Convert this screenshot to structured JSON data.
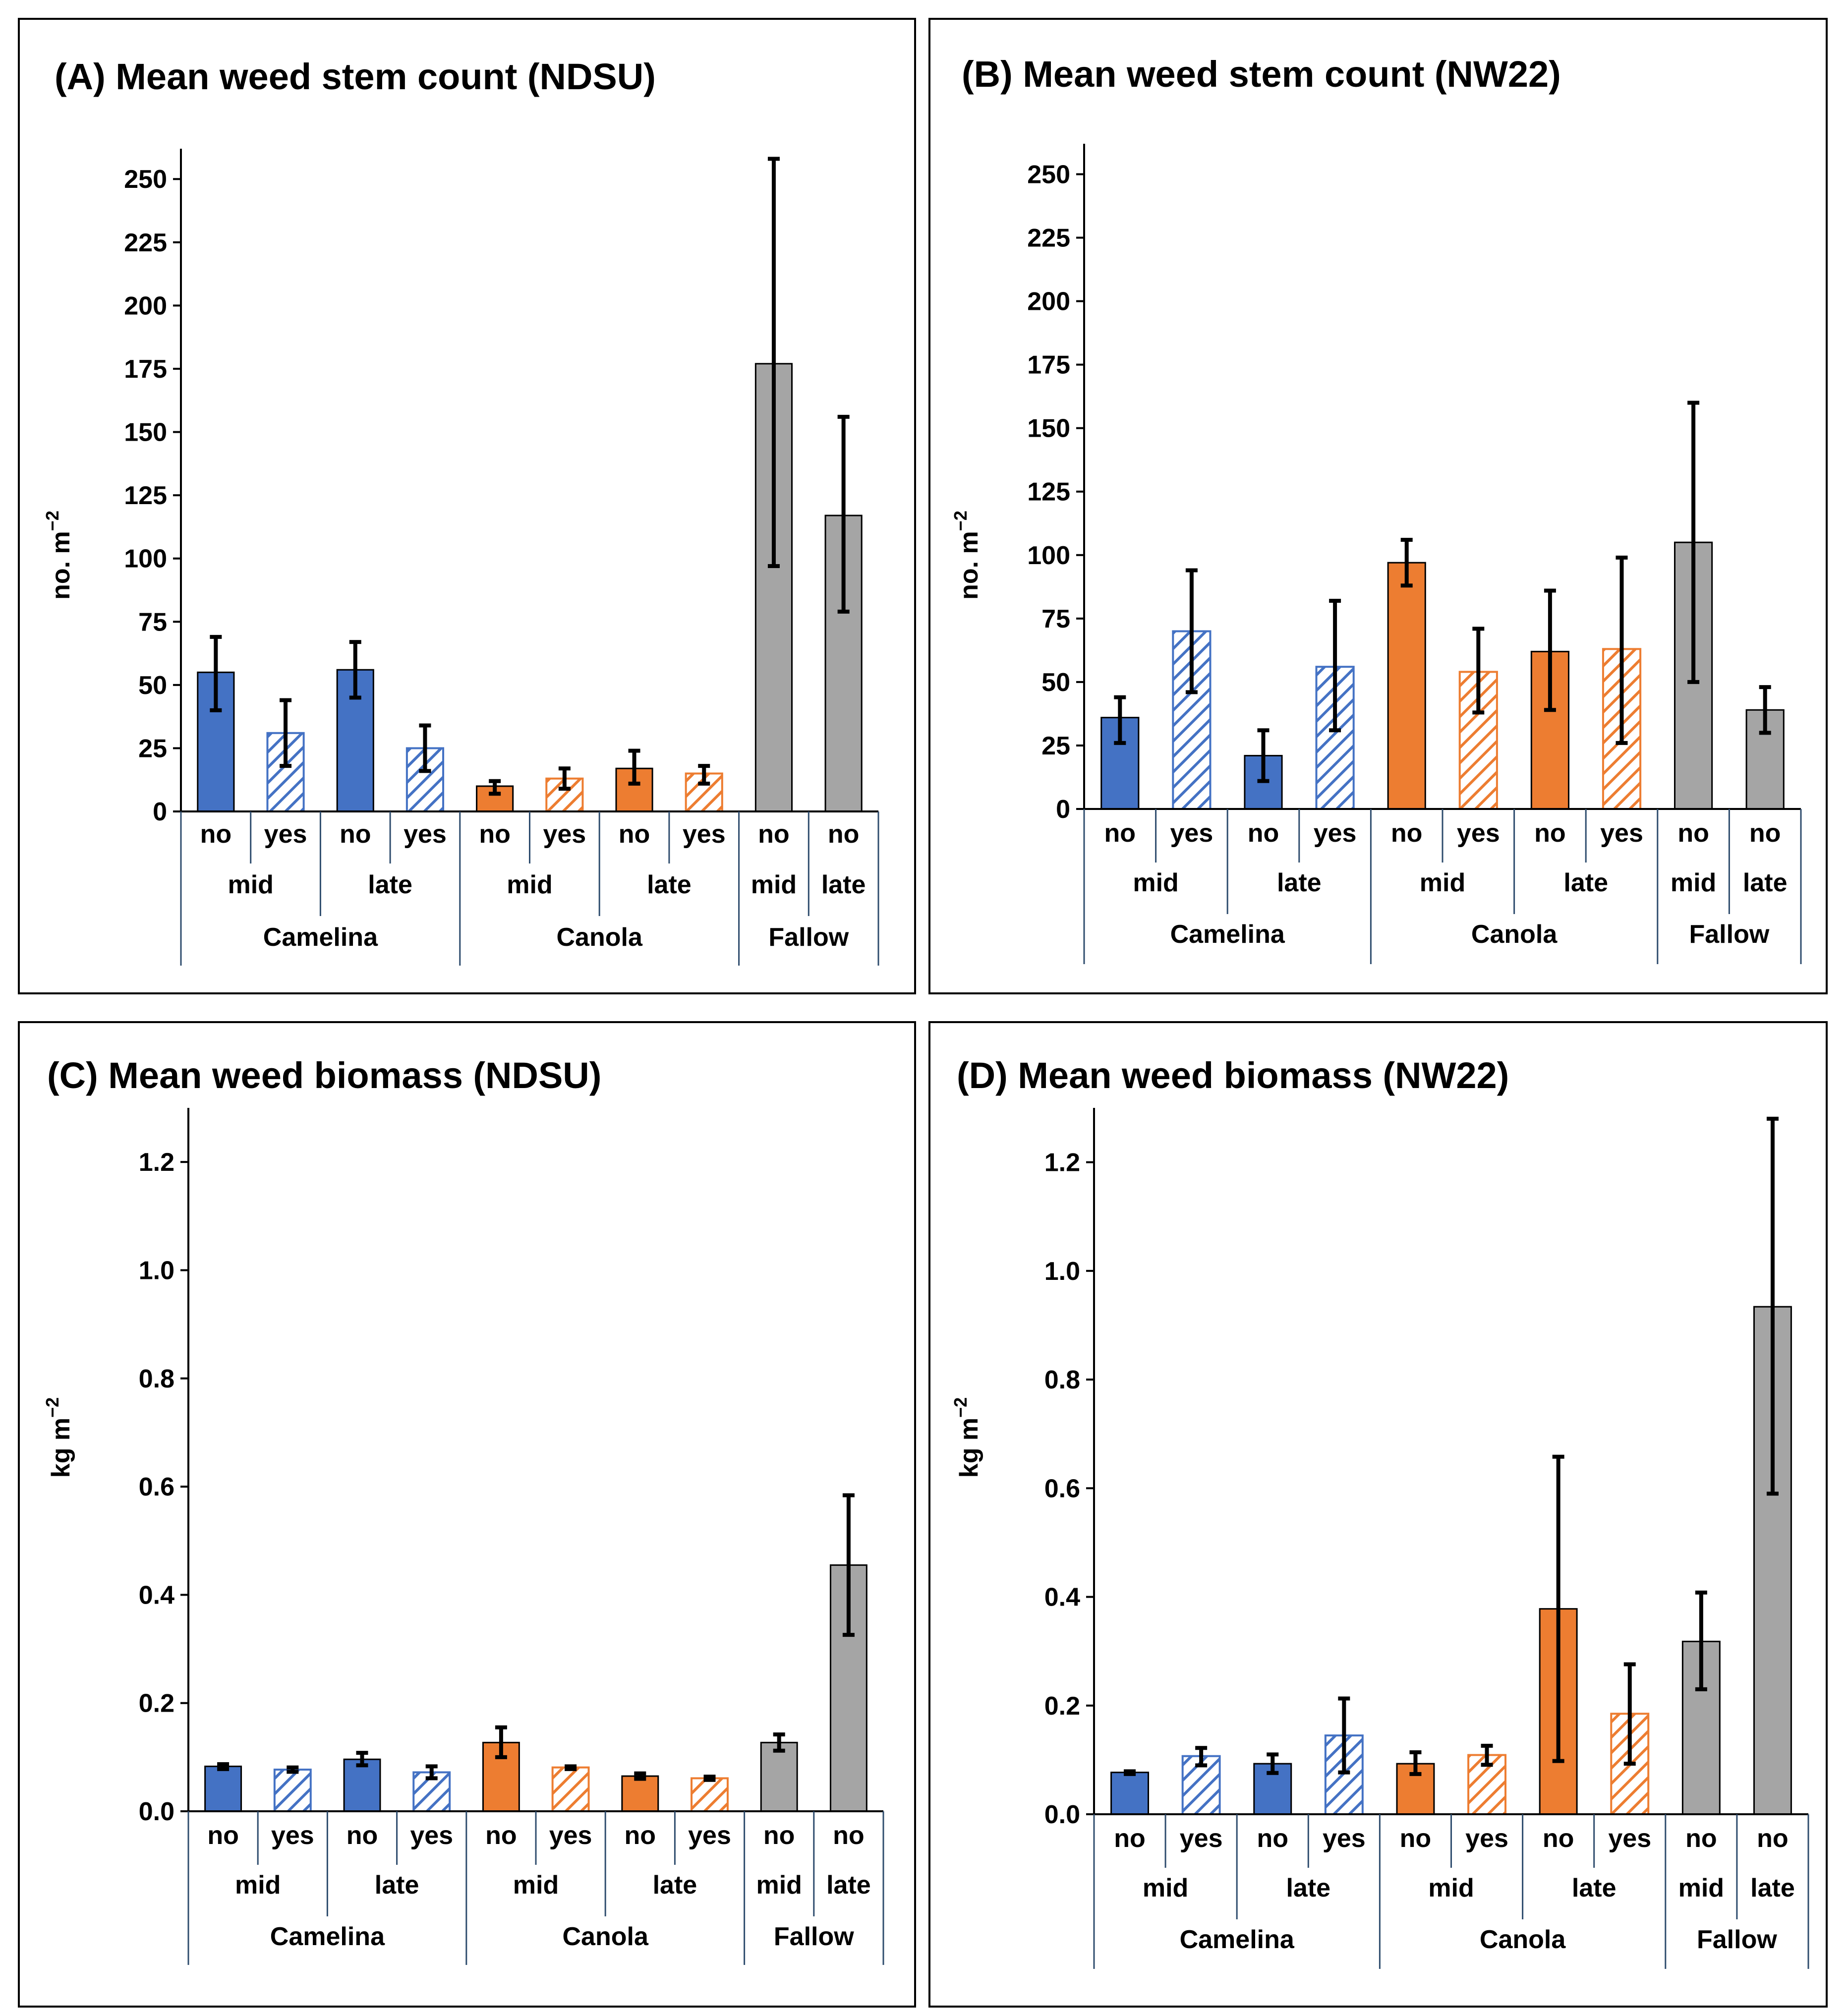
{
  "colors": {
    "camelina": "#4472C4",
    "canola": "#ED7D31",
    "fallow": "#A5A5A5",
    "error_bar": "#000000",
    "axis": "#000000",
    "group_lines": "#2F4D6E"
  },
  "levels": {
    "crops": [
      "Camelina",
      "Camelina",
      "Camelina",
      "Camelina",
      "Canola",
      "Canola",
      "Canola",
      "Canola",
      "Fallow",
      "Fallow"
    ],
    "timing": [
      "mid",
      "mid",
      "late",
      "late",
      "mid",
      "mid",
      "late",
      "late",
      "mid",
      "late"
    ],
    "treatment": [
      "no",
      "yes",
      "no",
      "yes",
      "no",
      "yes",
      "no",
      "yes",
      "no",
      "no"
    ],
    "hatched": [
      false,
      true,
      false,
      true,
      false,
      true,
      false,
      true,
      false,
      false
    ]
  },
  "chart_data": [
    {
      "type": "bar",
      "panel": "A",
      "title": "(A) Mean weed stem count (NDSU)",
      "ylabel": "no. m",
      "ylabel_sup": "−2",
      "ylim": [
        0,
        262
      ],
      "yticks": [
        0,
        25,
        50,
        75,
        100,
        125,
        150,
        175,
        200,
        225,
        250
      ],
      "ytick_labels": [
        "0",
        "25",
        "50",
        "75",
        "100",
        "125",
        "150",
        "175",
        "200",
        "225",
        "250"
      ],
      "group_labels": {
        "timing": [
          "mid",
          "late",
          "mid",
          "late",
          "mid",
          "late"
        ],
        "crop": [
          "Camelina",
          "Canola",
          "Fallow"
        ]
      },
      "values": [
        55,
        31,
        56,
        25,
        10,
        13,
        17,
        15,
        177,
        117
      ],
      "err_low": [
        40,
        18,
        45,
        16,
        7,
        9,
        11,
        11,
        97,
        79
      ],
      "err_high": [
        69,
        44,
        67,
        34,
        12,
        17,
        24,
        18,
        258,
        156
      ]
    },
    {
      "type": "bar",
      "panel": "B",
      "title": "(B) Mean weed stem count (NW22)",
      "ylabel": "no. m",
      "ylabel_sup": "−2",
      "ylim": [
        0,
        262
      ],
      "yticks": [
        0,
        25,
        50,
        75,
        100,
        125,
        150,
        175,
        200,
        225,
        250
      ],
      "ytick_labels": [
        "0",
        "25",
        "50",
        "75",
        "100",
        "125",
        "150",
        "175",
        "200",
        "225",
        "250"
      ],
      "group_labels": {
        "timing": [
          "mid",
          "late",
          "mid",
          "late",
          "mid",
          "late"
        ],
        "crop": [
          "Camelina",
          "Canola",
          "Fallow"
        ]
      },
      "values": [
        36,
        70,
        21,
        56,
        97,
        54,
        62,
        63,
        105,
        39
      ],
      "err_low": [
        26,
        46,
        11,
        31,
        88,
        38,
        39,
        26,
        50,
        30
      ],
      "err_high": [
        44,
        94,
        31,
        82,
        106,
        71,
        86,
        99,
        160,
        48
      ]
    },
    {
      "type": "bar",
      "panel": "C",
      "title": "(C) Mean weed biomass (NDSU)",
      "ylabel": "kg m",
      "ylabel_sup": "−2",
      "ylim": [
        0,
        1.3
      ],
      "yticks": [
        0,
        0.2,
        0.4,
        0.6,
        0.8,
        1.0,
        1.2
      ],
      "ytick_labels": [
        "0.0",
        "0.2",
        "0.4",
        "0.6",
        "0.8",
        "1.0",
        "1.2"
      ],
      "group_labels": {
        "timing": [
          "mid",
          "late",
          "mid",
          "late",
          "mid",
          "late"
        ],
        "crop": [
          "Camelina",
          "Canola",
          "Fallow"
        ]
      },
      "values": [
        0.083,
        0.077,
        0.096,
        0.072,
        0.127,
        0.081,
        0.065,
        0.061,
        0.127,
        0.455
      ],
      "err_low": [
        0.078,
        0.073,
        0.085,
        0.061,
        0.1,
        0.078,
        0.06,
        0.058,
        0.112,
        0.326
      ],
      "err_high": [
        0.087,
        0.081,
        0.108,
        0.083,
        0.155,
        0.083,
        0.07,
        0.064,
        0.142,
        0.584
      ]
    },
    {
      "type": "bar",
      "panel": "D",
      "title": "(D) Mean weed biomass (NW22)",
      "ylabel": "kg m",
      "ylabel_sup": "−2",
      "ylim": [
        0,
        1.3
      ],
      "yticks": [
        0,
        0.2,
        0.4,
        0.6,
        0.8,
        1.0,
        1.2
      ],
      "ytick_labels": [
        "0.0",
        "0.2",
        "0.4",
        "0.6",
        "0.8",
        "1.0",
        "1.2"
      ],
      "group_labels": {
        "timing": [
          "mid",
          "late",
          "mid",
          "late",
          "mid",
          "late"
        ],
        "crop": [
          "Camelina",
          "Canola",
          "Fallow"
        ]
      },
      "values": [
        0.077,
        0.107,
        0.093,
        0.145,
        0.093,
        0.109,
        0.378,
        0.185,
        0.318,
        0.934
      ],
      "err_low": [
        0.074,
        0.09,
        0.076,
        0.077,
        0.074,
        0.091,
        0.098,
        0.093,
        0.23,
        0.59
      ],
      "err_high": [
        0.079,
        0.122,
        0.11,
        0.213,
        0.114,
        0.126,
        0.658,
        0.276,
        0.408,
        1.28
      ]
    }
  ]
}
